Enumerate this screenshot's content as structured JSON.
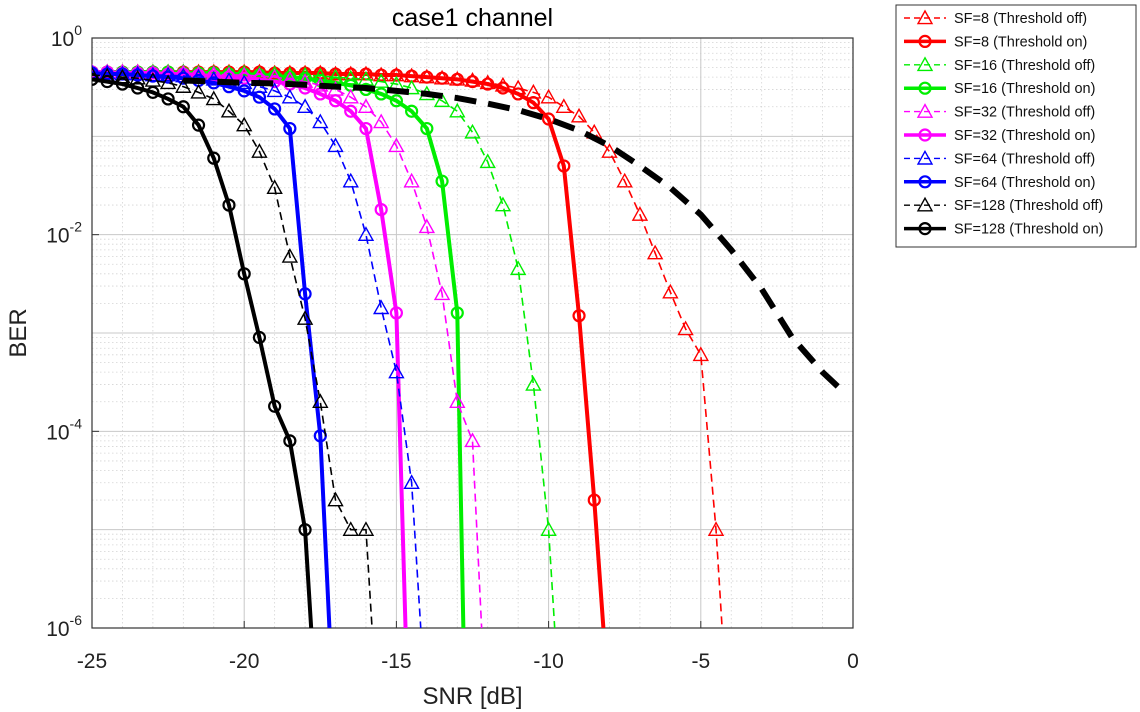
{
  "chart_data": {
    "type": "line",
    "title": "case1 channel",
    "xlabel": "SNR [dB]",
    "ylabel": "BER",
    "xlim": [
      -25,
      0
    ],
    "ylim": [
      1e-06,
      1
    ],
    "yscale": "log",
    "grid": true,
    "minor_grid": true,
    "legend_position": "outside-top-right",
    "x_ticks": [
      -25,
      -20,
      -15,
      -10,
      -5,
      0
    ],
    "x_tick_labels": [
      "-25",
      "-20",
      "-15",
      "-10",
      "-5",
      "0"
    ],
    "y_ticks": [
      1e-06,
      0.0001,
      0.01,
      1
    ],
    "y_tick_labels": [
      {
        "base": "10",
        "exp": "-6"
      },
      {
        "base": "10",
        "exp": "-4"
      },
      {
        "base": "10",
        "exp": "-2"
      },
      {
        "base": "10",
        "exp": "0"
      }
    ],
    "series": [
      {
        "name": "SF=8 (Threshold off)",
        "color": "#ff0000",
        "style": "dashed",
        "marker": "triangle",
        "x": [
          -25,
          -24.5,
          -24,
          -23.5,
          -23,
          -22.5,
          -22,
          -21.5,
          -21,
          -20.5,
          -20,
          -19.5,
          -19,
          -18.5,
          -18,
          -17.5,
          -17,
          -16.5,
          -16,
          -15.5,
          -15,
          -14.5,
          -14,
          -13.5,
          -13,
          -12.5,
          -12,
          -11.5,
          -11,
          -10.5,
          -10,
          -9.5,
          -9,
          -8.5,
          -8,
          -7.5,
          -7,
          -6.5,
          -6,
          -5.5,
          -5,
          -4.5,
          -4.3
        ],
        "y": [
          0.45,
          0.45,
          0.45,
          0.45,
          0.45,
          0.45,
          0.45,
          0.45,
          0.45,
          0.45,
          0.45,
          0.45,
          0.44,
          0.44,
          0.44,
          0.44,
          0.43,
          0.43,
          0.43,
          0.42,
          0.42,
          0.41,
          0.4,
          0.39,
          0.38,
          0.37,
          0.35,
          0.33,
          0.31,
          0.28,
          0.25,
          0.2,
          0.16,
          0.11,
          0.07,
          0.035,
          0.016,
          0.0065,
          0.0026,
          0.0011,
          0.0006,
          1e-05,
          1e-06
        ]
      },
      {
        "name": "SF=8 (Threshold on)",
        "color": "#ff0000",
        "style": "solid",
        "marker": "circle",
        "x": [
          -25,
          -24.5,
          -24,
          -23.5,
          -23,
          -22.5,
          -22,
          -21.5,
          -21,
          -20.5,
          -20,
          -19.5,
          -19,
          -18.5,
          -18,
          -17.5,
          -17,
          -16.5,
          -16,
          -15.5,
          -15,
          -14.5,
          -14,
          -13.5,
          -13,
          -12.5,
          -12,
          -11.5,
          -11,
          -10.5,
          -10,
          -9.5,
          -9,
          -8.5,
          -8.2
        ],
        "y": [
          0.45,
          0.45,
          0.45,
          0.45,
          0.45,
          0.45,
          0.45,
          0.45,
          0.45,
          0.45,
          0.45,
          0.45,
          0.44,
          0.44,
          0.44,
          0.44,
          0.43,
          0.43,
          0.43,
          0.42,
          0.42,
          0.41,
          0.4,
          0.39,
          0.38,
          0.36,
          0.34,
          0.31,
          0.27,
          0.22,
          0.15,
          0.05,
          0.0015,
          2e-05,
          1e-06
        ]
      },
      {
        "name": "SF=16 (Threshold off)",
        "color": "#00ee00",
        "style": "dashed",
        "marker": "triangle",
        "x": [
          -25,
          -24.5,
          -24,
          -23.5,
          -23,
          -22.5,
          -22,
          -21.5,
          -21,
          -20.5,
          -20,
          -19.5,
          -19,
          -18.5,
          -18,
          -17.5,
          -17,
          -16.5,
          -16,
          -15.5,
          -15,
          -14.5,
          -14,
          -13.5,
          -13,
          -12.5,
          -12,
          -11.5,
          -11,
          -10.5,
          -10,
          -9.8
        ],
        "y": [
          0.45,
          0.45,
          0.45,
          0.45,
          0.45,
          0.45,
          0.45,
          0.44,
          0.44,
          0.44,
          0.44,
          0.43,
          0.43,
          0.42,
          0.42,
          0.41,
          0.4,
          0.39,
          0.38,
          0.36,
          0.34,
          0.31,
          0.27,
          0.23,
          0.18,
          0.11,
          0.055,
          0.02,
          0.0045,
          0.0003,
          1e-05,
          1e-06
        ]
      },
      {
        "name": "SF=16 (Threshold on)",
        "color": "#00ee00",
        "style": "solid",
        "marker": "circle",
        "x": [
          -25,
          -24.5,
          -24,
          -23.5,
          -23,
          -22.5,
          -22,
          -21.5,
          -21,
          -20.5,
          -20,
          -19.5,
          -19,
          -18.5,
          -18,
          -17.5,
          -17,
          -16.5,
          -16,
          -15.5,
          -15,
          -14.5,
          -14,
          -13.5,
          -13,
          -12.8
        ],
        "y": [
          0.45,
          0.45,
          0.45,
          0.45,
          0.45,
          0.45,
          0.44,
          0.44,
          0.44,
          0.43,
          0.43,
          0.42,
          0.41,
          0.4,
          0.39,
          0.37,
          0.35,
          0.33,
          0.3,
          0.27,
          0.23,
          0.18,
          0.12,
          0.035,
          0.0016,
          1e-06
        ]
      },
      {
        "name": "SF=32 (Threshold off)",
        "color": "#ff00ff",
        "style": "dashed",
        "marker": "triangle",
        "x": [
          -25,
          -24.5,
          -24,
          -23.5,
          -23,
          -22.5,
          -22,
          -21.5,
          -21,
          -20.5,
          -20,
          -19.5,
          -19,
          -18.5,
          -18,
          -17.5,
          -17,
          -16.5,
          -16,
          -15.5,
          -15,
          -14.5,
          -14,
          -13.5,
          -13,
          -12.5,
          -12.2
        ],
        "y": [
          0.45,
          0.45,
          0.45,
          0.45,
          0.44,
          0.44,
          0.44,
          0.43,
          0.43,
          0.42,
          0.42,
          0.41,
          0.4,
          0.38,
          0.36,
          0.33,
          0.3,
          0.25,
          0.2,
          0.14,
          0.08,
          0.035,
          0.012,
          0.0025,
          0.0002,
          8e-05,
          1e-06
        ]
      },
      {
        "name": "SF=32 (Threshold on)",
        "color": "#ff00ff",
        "style": "solid",
        "marker": "circle",
        "x": [
          -25,
          -24.5,
          -24,
          -23.5,
          -23,
          -22.5,
          -22,
          -21.5,
          -21,
          -20.5,
          -20,
          -19.5,
          -19,
          -18.5,
          -18,
          -17.5,
          -17,
          -16.5,
          -16,
          -15.5,
          -15,
          -14.7
        ],
        "y": [
          0.45,
          0.45,
          0.44,
          0.44,
          0.44,
          0.43,
          0.43,
          0.42,
          0.41,
          0.4,
          0.39,
          0.38,
          0.36,
          0.34,
          0.31,
          0.27,
          0.23,
          0.18,
          0.12,
          0.018,
          0.0016,
          1e-06
        ]
      },
      {
        "name": "SF=64 (Threshold off)",
        "color": "#0000ff",
        "style": "dashed",
        "marker": "triangle",
        "x": [
          -25,
          -24.5,
          -24,
          -23.5,
          -23,
          -22.5,
          -22,
          -21.5,
          -21,
          -20.5,
          -20,
          -19.5,
          -19,
          -18.5,
          -18,
          -17.5,
          -17,
          -16.5,
          -16,
          -15.5,
          -15,
          -14.5,
          -14.2
        ],
        "y": [
          0.44,
          0.44,
          0.43,
          0.43,
          0.42,
          0.42,
          0.41,
          0.4,
          0.38,
          0.37,
          0.35,
          0.32,
          0.29,
          0.25,
          0.2,
          0.14,
          0.08,
          0.035,
          0.01,
          0.0018,
          0.0004,
          3e-05,
          1e-06
        ]
      },
      {
        "name": "SF=64 (Threshold on)",
        "color": "#0000ff",
        "style": "solid",
        "marker": "circle",
        "x": [
          -25,
          -24.5,
          -24,
          -23.5,
          -23,
          -22.5,
          -22,
          -21.5,
          -21,
          -20.5,
          -20,
          -19.5,
          -19,
          -18.5,
          -18,
          -17.5,
          -17.2
        ],
        "y": [
          0.44,
          0.43,
          0.43,
          0.42,
          0.41,
          0.4,
          0.39,
          0.37,
          0.35,
          0.32,
          0.29,
          0.25,
          0.19,
          0.12,
          0.0025,
          9e-05,
          1e-06
        ]
      },
      {
        "name": "SF=128 (Threshold off)",
        "color": "#000000",
        "style": "dashed",
        "marker": "triangle",
        "x": [
          -25,
          -24.5,
          -24,
          -23.5,
          -23,
          -22.5,
          -22,
          -21.5,
          -21,
          -20.5,
          -20,
          -19.5,
          -19,
          -18.5,
          -18,
          -17.5,
          -17,
          -16.5,
          -16,
          -15.8
        ],
        "y": [
          0.42,
          0.41,
          0.4,
          0.39,
          0.37,
          0.35,
          0.32,
          0.28,
          0.24,
          0.18,
          0.13,
          0.07,
          0.03,
          0.006,
          0.0014,
          0.0002,
          2e-05,
          1e-05,
          1e-05,
          1e-06
        ]
      },
      {
        "name": "SF=128 (Threshold on)",
        "color": "#000000",
        "style": "solid",
        "marker": "circle",
        "x": [
          -25,
          -24.5,
          -24,
          -23.5,
          -23,
          -22.5,
          -22,
          -21.5,
          -21,
          -20.5,
          -20,
          -19.5,
          -19,
          -18.5,
          -18,
          -17.8
        ],
        "y": [
          0.38,
          0.36,
          0.34,
          0.31,
          0.28,
          0.24,
          0.2,
          0.13,
          0.06,
          0.02,
          0.004,
          0.0009,
          0.00018,
          8e-05,
          1e-05,
          1e-06
        ]
      },
      {
        "name": "",
        "color": "#000000",
        "style": "thick-dashed",
        "marker": "none",
        "x": [
          -22,
          -21,
          -20,
          -19,
          -18,
          -17,
          -16,
          -15,
          -14,
          -13,
          -12,
          -11,
          -10,
          -9,
          -8,
          -7,
          -6,
          -5,
          -4,
          -3,
          -2,
          -1,
          -0.3
        ],
        "y": [
          0.37,
          0.36,
          0.35,
          0.345,
          0.335,
          0.32,
          0.31,
          0.29,
          0.27,
          0.245,
          0.215,
          0.185,
          0.15,
          0.115,
          0.08,
          0.05,
          0.03,
          0.016,
          0.007,
          0.0028,
          0.0009,
          0.0004,
          0.00025
        ]
      }
    ]
  }
}
